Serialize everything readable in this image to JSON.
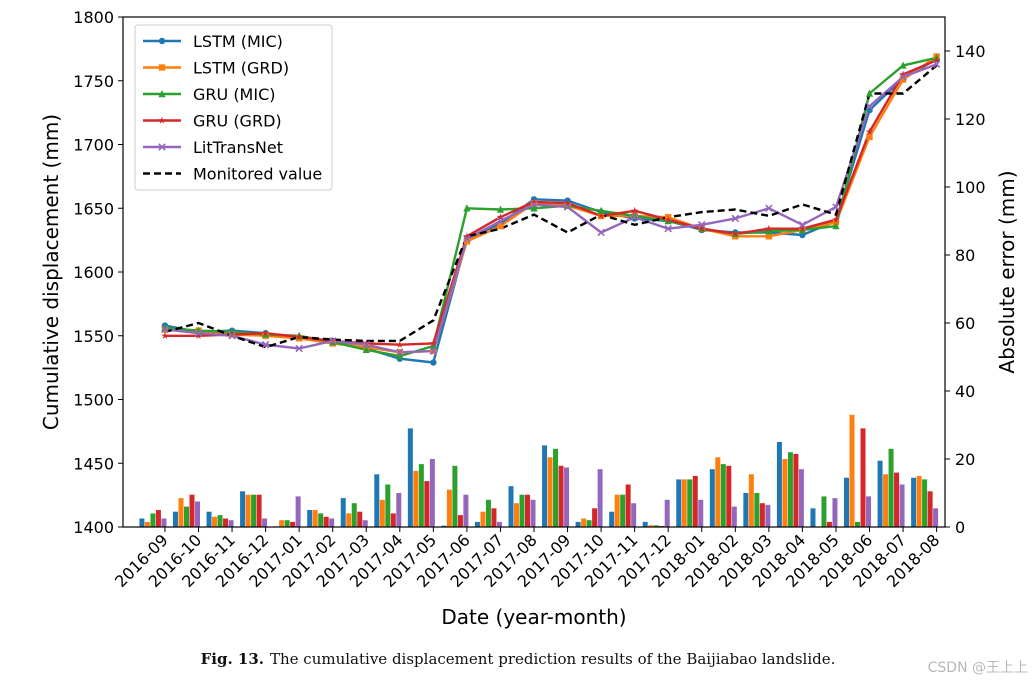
{
  "chart_data": {
    "type": "line",
    "secondary_type": "bar",
    "title": "",
    "xlabel": "Date (year-month)",
    "ylabel": "Cumulative displacement (mm)",
    "ylabel_right": "Absolute error (mm)",
    "ylim": [
      1400,
      1800
    ],
    "ylim_right": [
      0,
      150
    ],
    "yticks": [
      1400,
      1450,
      1500,
      1550,
      1600,
      1650,
      1700,
      1750,
      1800
    ],
    "yticks_right": [
      0,
      20,
      40,
      60,
      80,
      100,
      120,
      140
    ],
    "legend_position": "top-left",
    "categories": [
      "2016-09",
      "2016-10",
      "2016-11",
      "2016-12",
      "2017-01",
      "2017-02",
      "2017-03",
      "2017-04",
      "2017-05",
      "2017-06",
      "2017-07",
      "2017-08",
      "2017-09",
      "2017-10",
      "2017-11",
      "2017-12",
      "2018-01",
      "2018-02",
      "2018-03",
      "2018-04",
      "2018-05",
      "2018-06",
      "2018-07",
      "2018-08"
    ],
    "monitored": {
      "name": "Monitored value",
      "color": "#000000",
      "values": [
        1553,
        1560,
        1550,
        1541,
        1549,
        1547,
        1546,
        1546,
        1562,
        1628,
        1634,
        1645,
        1631,
        1645,
        1637,
        1643,
        1647,
        1649,
        1644,
        1653,
        1645,
        1740,
        1740,
        1762
      ]
    },
    "series": [
      {
        "name": "LSTM (MIC)",
        "color": "#1f77b4",
        "marker": "circle",
        "values": [
          1558,
          1553,
          1554,
          1552,
          1548,
          1546,
          1540,
          1532,
          1529,
          1626,
          1638,
          1657,
          1656,
          1647,
          1642,
          1640,
          1633,
          1631,
          1631,
          1629,
          1640,
          1727,
          1752,
          1767
        ]
      },
      {
        "name": "LSTM (GRD)",
        "color": "#ff7f0e",
        "marker": "square",
        "values": [
          1555,
          1554,
          1551,
          1550,
          1548,
          1544,
          1541,
          1537,
          1538,
          1624,
          1636,
          1654,
          1652,
          1644,
          1644,
          1643,
          1634,
          1628,
          1628,
          1633,
          1639,
          1706,
          1751,
          1769
        ]
      },
      {
        "name": "GRU (MIC)",
        "color": "#2ca02c",
        "marker": "triangle",
        "values": [
          1556,
          1554,
          1553,
          1551,
          1550,
          1545,
          1539,
          1534,
          1542,
          1650,
          1649,
          1650,
          1652,
          1648,
          1644,
          1640,
          1634,
          1630,
          1632,
          1633,
          1636,
          1740,
          1762,
          1768
        ]
      },
      {
        "name": "GRU (GRD)",
        "color": "#d62728",
        "marker": "star",
        "values": [
          1550,
          1550,
          1551,
          1552,
          1549,
          1546,
          1544,
          1543,
          1544,
          1628,
          1643,
          1655,
          1654,
          1644,
          1648,
          1641,
          1634,
          1630,
          1634,
          1634,
          1641,
          1710,
          1755,
          1766
        ]
      },
      {
        "name": "LitTransNet",
        "color": "#9467bd",
        "marker": "x",
        "values": [
          1555,
          1552,
          1550,
          1543,
          1540,
          1546,
          1543,
          1537,
          1538,
          1626,
          1640,
          1653,
          1651,
          1631,
          1643,
          1634,
          1637,
          1642,
          1650,
          1637,
          1651,
          1730,
          1753,
          1763
        ]
      }
    ],
    "errors": [
      [
        2.5,
        4.5,
        4.5,
        10.5,
        0.2,
        5.0,
        8.5,
        15.5,
        29.0,
        0.4,
        1.5,
        12.0,
        24.0,
        1.5,
        4.5,
        1.5,
        14.0,
        17.0,
        10.0,
        25.0,
        5.5,
        14.5,
        19.5,
        14.5
      ],
      [
        1.5,
        8.5,
        3.0,
        9.5,
        2.0,
        5.0,
        4.0,
        8.0,
        16.5,
        11.0,
        4.5,
        7.0,
        20.5,
        2.5,
        9.5,
        0.5,
        14.0,
        20.5,
        15.5,
        20.0,
        0.0,
        33.0,
        15.5,
        15.0
      ],
      [
        4.0,
        6.0,
        3.5,
        9.5,
        2.0,
        4.0,
        7.0,
        12.5,
        18.5,
        18.0,
        8.0,
        9.5,
        23.0,
        2.0,
        9.5,
        0.5,
        14.0,
        18.5,
        10.0,
        22.0,
        9.0,
        1.5,
        23.0,
        14.0
      ],
      [
        5.0,
        9.5,
        2.5,
        9.5,
        1.5,
        3.0,
        4.5,
        4.0,
        13.5,
        3.5,
        5.5,
        9.5,
        18.0,
        5.5,
        12.5,
        0.3,
        15.0,
        18.0,
        7.0,
        21.5,
        1.5,
        29.0,
        16.0,
        10.5
      ],
      [
        2.5,
        7.5,
        2.0,
        2.5,
        9.0,
        2.5,
        2.0,
        10.0,
        20.0,
        9.5,
        1.5,
        8.0,
        17.5,
        17.0,
        7.0,
        8.0,
        8.0,
        6.0,
        6.5,
        17.0,
        8.5,
        9.0,
        12.5,
        5.5
      ]
    ]
  },
  "caption": {
    "label": "Fig. 13.",
    "text": "The cumulative displacement prediction results of the Baijiabao landslide."
  },
  "watermark": "CSDN @王上上"
}
